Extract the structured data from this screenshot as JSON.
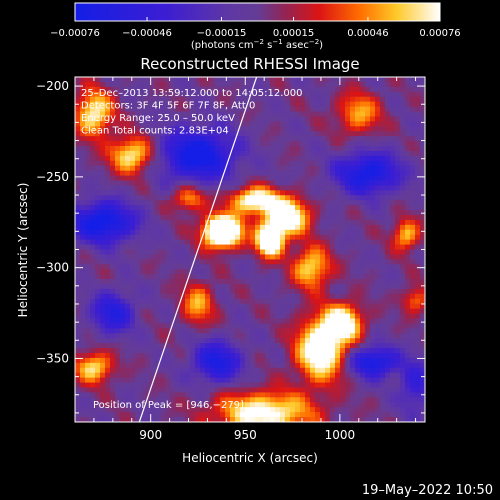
{
  "chart_data": {
    "type": "heatmap",
    "title": "Reconstructed RHESSI Image",
    "xlabel": "Heliocentric X (arcsec)",
    "ylabel": "Heliocentric Y (arcsec)",
    "xlim": [
      860,
      1045
    ],
    "ylim": [
      -385,
      -195
    ],
    "x_ticks": [
      900,
      950,
      1000
    ],
    "x_tick_labels": [
      "900",
      "950",
      "1000"
    ],
    "y_ticks": [
      -200,
      -250,
      -300,
      -350
    ],
    "y_tick_labels": [
      "−200",
      "−250",
      "−300",
      "−350"
    ],
    "colorbar": {
      "range": [
        -0.00076,
        0.00076
      ],
      "tick_values": [
        -0.00076,
        -0.00046,
        -0.00015,
        0.00015,
        0.00046,
        0.00076
      ],
      "tick_labels": [
        "−0.00076",
        "−0.00046",
        "−0.00015",
        "0.00015",
        "0.00046",
        "0.00076"
      ],
      "units_prefix": "(photons cm",
      "units_exp1": "−2",
      "units_mid1": " s",
      "units_exp2": "−1",
      "units_mid2": " asec",
      "units_exp3": "−2",
      "units_suffix": ")"
    },
    "annotations": [
      "25–Dec–2013 13:59:12.000 to 14:05:12.000",
      "Detectors: 3F 4F 5F 6F 7F 8F, Att 0",
      "Energy Range: 25.0 – 50.0 keV",
      "Clean     Total counts: 2.83E+04"
    ],
    "peak_label": "Position of Peak = [946,−279]",
    "peak_position": [
      946,
      -279
    ],
    "limb_line": [
      [
        894,
        -385
      ],
      [
        956,
        -195
      ]
    ],
    "emission_blobs": [
      {
        "x": 938,
        "y": -280,
        "sigma_x": 7,
        "sigma_y": 6,
        "amp": 1.0
      },
      {
        "x": 963,
        "y": -285,
        "sigma_x": 5,
        "sigma_y": 6,
        "amp": 0.8
      },
      {
        "x": 955,
        "y": -263,
        "sigma_x": 9,
        "sigma_y": 5,
        "amp": 0.6
      },
      {
        "x": 972,
        "y": -272,
        "sigma_x": 8,
        "sigma_y": 7,
        "amp": 0.65
      },
      {
        "x": 985,
        "y": -300,
        "sigma_x": 7,
        "sigma_y": 8,
        "amp": 0.45
      },
      {
        "x": 990,
        "y": -345,
        "sigma_x": 9,
        "sigma_y": 12,
        "amp": 0.65
      },
      {
        "x": 1002,
        "y": -330,
        "sigma_x": 7,
        "sigma_y": 7,
        "amp": 0.55
      },
      {
        "x": 960,
        "y": -380,
        "sigma_x": 18,
        "sigma_y": 8,
        "amp": 0.55
      },
      {
        "x": 870,
        "y": -215,
        "sigma_x": 7,
        "sigma_y": 9,
        "amp": 0.5
      },
      {
        "x": 890,
        "y": -238,
        "sigma_x": 8,
        "sigma_y": 7,
        "amp": 0.5
      },
      {
        "x": 870,
        "y": -355,
        "sigma_x": 7,
        "sigma_y": 6,
        "amp": 0.45
      },
      {
        "x": 925,
        "y": -320,
        "sigma_x": 6,
        "sigma_y": 8,
        "amp": 0.35
      },
      {
        "x": 1010,
        "y": -215,
        "sigma_x": 8,
        "sigma_y": 8,
        "amp": 0.35
      },
      {
        "x": 1035,
        "y": -282,
        "sigma_x": 5,
        "sigma_y": 6,
        "amp": 0.4
      },
      {
        "x": 1040,
        "y": -318,
        "sigma_x": 5,
        "sigma_y": 5,
        "amp": 0.3
      },
      {
        "x": 920,
        "y": -262,
        "sigma_x": 6,
        "sigma_y": 5,
        "amp": 0.35
      }
    ],
    "absorption_blobs": [
      {
        "x": 925,
        "y": -238,
        "sigma_x": 14,
        "sigma_y": 10,
        "amp": 0.55
      },
      {
        "x": 875,
        "y": -275,
        "sigma_x": 12,
        "sigma_y": 8,
        "amp": 0.55
      },
      {
        "x": 935,
        "y": -352,
        "sigma_x": 9,
        "sigma_y": 8,
        "amp": 0.45
      },
      {
        "x": 1015,
        "y": -248,
        "sigma_x": 12,
        "sigma_y": 8,
        "amp": 0.5
      },
      {
        "x": 1018,
        "y": -352,
        "sigma_x": 9,
        "sigma_y": 6,
        "amp": 0.5
      },
      {
        "x": 880,
        "y": -325,
        "sigma_x": 8,
        "sigma_y": 8,
        "amp": 0.4
      },
      {
        "x": 1040,
        "y": -365,
        "sigma_x": 6,
        "sigma_y": 10,
        "amp": 0.3
      }
    ],
    "grid": false
  },
  "footer": {
    "timestamp": "19–May–2022 10:50"
  }
}
